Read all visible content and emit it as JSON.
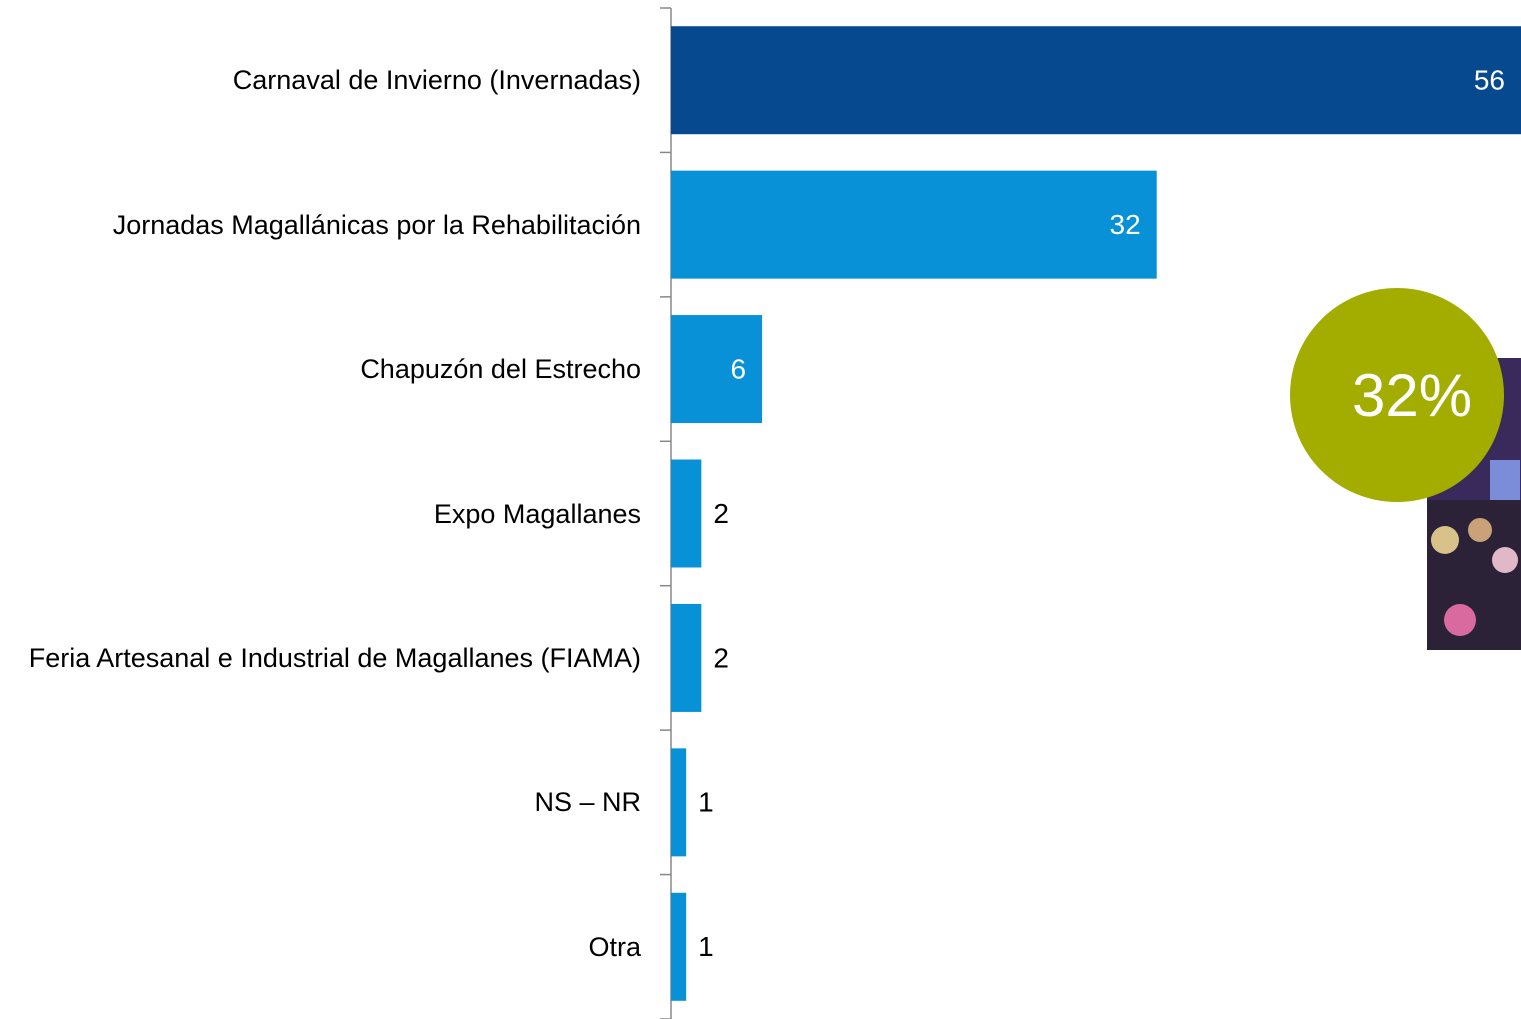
{
  "chart_data": {
    "type": "bar",
    "orientation": "horizontal",
    "categories": [
      "Carnaval de Invierno (Invernadas)",
      "Jornadas Magallánicas por la Rehabilitación",
      "Chapuzón del Estrecho",
      "Expo Magallanes",
      "Feria Artesanal e Industrial de Magallanes (FIAMA)",
      "NS – NR",
      "Otra"
    ],
    "values": [
      56,
      32,
      6,
      2,
      2,
      1,
      1
    ],
    "colors": [
      "#06498e",
      "#0891d7",
      "#0891d7",
      "#0891d7",
      "#0891d7",
      "#0891d7",
      "#0891d7"
    ],
    "annotation": "32%",
    "annotation_color": "#a2ad00"
  }
}
